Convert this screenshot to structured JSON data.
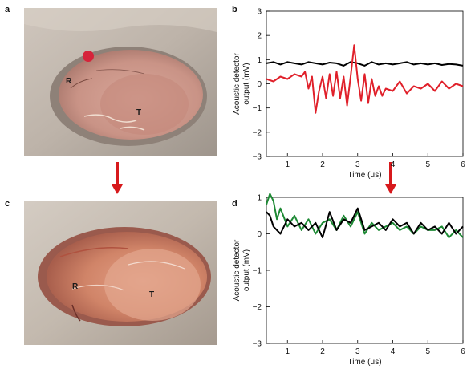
{
  "panels": {
    "a": {
      "letter": "a",
      "labels": {
        "r": "R",
        "t": "T"
      }
    },
    "b": {
      "letter": "b"
    },
    "c": {
      "letter": "c",
      "labels": {
        "r": "R",
        "t": "T"
      }
    },
    "d": {
      "letter": "d"
    }
  },
  "colors": {
    "arrow": "#d7191c",
    "trace_black": "#000000",
    "trace_red": "#e0202a",
    "trace_green": "#1e8a35"
  },
  "chart_data": [
    {
      "panel": "b",
      "type": "line",
      "xlabel": "Time (μs)",
      "ylabel": "Acoustic detector output (mV)",
      "ylabel_lines": [
        "Acoustic detector",
        "output (mV)"
      ],
      "xlim": [
        0.4,
        6
      ],
      "ylim": [
        -3,
        3
      ],
      "xticks": [
        1,
        2,
        3,
        4,
        5,
        6
      ],
      "yticks": [
        -3,
        -2,
        -1,
        0,
        1,
        2,
        3
      ],
      "series": [
        {
          "color": "#000000",
          "x": [
            0.4,
            0.6,
            0.8,
            1.0,
            1.2,
            1.4,
            1.6,
            1.8,
            2.0,
            2.2,
            2.4,
            2.6,
            2.8,
            3.0,
            3.2,
            3.4,
            3.6,
            3.8,
            4.0,
            4.2,
            4.4,
            4.6,
            4.8,
            5.0,
            5.2,
            5.4,
            5.6,
            5.8,
            6.0
          ],
          "y": [
            0.85,
            0.9,
            0.8,
            0.9,
            0.85,
            0.8,
            0.9,
            0.85,
            0.8,
            0.88,
            0.85,
            0.75,
            0.9,
            0.85,
            0.75,
            0.9,
            0.8,
            0.85,
            0.8,
            0.85,
            0.9,
            0.8,
            0.85,
            0.8,
            0.85,
            0.78,
            0.82,
            0.8,
            0.75
          ]
        },
        {
          "color": "#e0202a",
          "x": [
            0.4,
            0.6,
            0.8,
            1.0,
            1.2,
            1.4,
            1.5,
            1.6,
            1.7,
            1.8,
            1.9,
            2.0,
            2.1,
            2.2,
            2.3,
            2.4,
            2.5,
            2.6,
            2.7,
            2.8,
            2.9,
            3.0,
            3.1,
            3.2,
            3.3,
            3.4,
            3.5,
            3.6,
            3.7,
            3.8,
            4.0,
            4.2,
            4.4,
            4.6,
            4.8,
            5.0,
            5.2,
            5.4,
            5.6,
            5.8,
            6.0
          ],
          "y": [
            0.2,
            0.1,
            0.3,
            0.2,
            0.4,
            0.3,
            0.5,
            -0.2,
            0.3,
            -1.2,
            -0.3,
            0.3,
            -0.6,
            0.4,
            -0.5,
            0.5,
            -0.6,
            0.3,
            -0.9,
            0.3,
            1.6,
            0.2,
            -0.7,
            0.4,
            -0.8,
            0.2,
            -0.5,
            -0.1,
            -0.5,
            -0.2,
            -0.3,
            0.1,
            -0.4,
            -0.1,
            -0.2,
            0.0,
            -0.3,
            0.1,
            -0.2,
            0.0,
            -0.1
          ]
        }
      ]
    },
    {
      "panel": "d",
      "type": "line",
      "xlabel": "Time (μs)",
      "ylabel": "Acoustic detector output (mV)",
      "ylabel_lines": [
        "Acoustic detector",
        "output (mV)"
      ],
      "xlim": [
        0.4,
        6
      ],
      "ylim": [
        -3,
        1
      ],
      "xticks": [
        1,
        2,
        3,
        4,
        5,
        6
      ],
      "yticks": [
        -3,
        -2,
        -1,
        0,
        1
      ],
      "series": [
        {
          "color": "#1e8a35",
          "x": [
            0.4,
            0.5,
            0.6,
            0.7,
            0.8,
            1.0,
            1.2,
            1.4,
            1.6,
            1.8,
            2.0,
            2.2,
            2.4,
            2.6,
            2.8,
            3.0,
            3.2,
            3.4,
            3.6,
            3.8,
            4.0,
            4.2,
            4.4,
            4.6,
            4.8,
            5.0,
            5.2,
            5.4,
            5.6,
            5.8,
            6.0
          ],
          "y": [
            0.8,
            1.1,
            0.9,
            0.4,
            0.7,
            0.2,
            0.5,
            0.1,
            0.4,
            0.0,
            0.3,
            0.4,
            0.1,
            0.5,
            0.2,
            0.6,
            0.0,
            0.3,
            0.1,
            0.2,
            0.3,
            0.1,
            0.2,
            0.0,
            0.2,
            0.1,
            0.1,
            0.2,
            -0.1,
            0.1,
            -0.1
          ]
        },
        {
          "color": "#000000",
          "x": [
            0.4,
            0.5,
            0.6,
            0.8,
            1.0,
            1.2,
            1.4,
            1.6,
            1.8,
            2.0,
            2.2,
            2.4,
            2.6,
            2.8,
            3.0,
            3.2,
            3.4,
            3.6,
            3.8,
            4.0,
            4.2,
            4.4,
            4.6,
            4.8,
            5.0,
            5.2,
            5.4,
            5.6,
            5.8,
            6.0
          ],
          "y": [
            0.6,
            0.5,
            0.2,
            0.0,
            0.4,
            0.2,
            0.3,
            0.1,
            0.3,
            -0.1,
            0.6,
            0.1,
            0.4,
            0.3,
            0.7,
            0.1,
            0.2,
            0.3,
            0.1,
            0.4,
            0.2,
            0.3,
            0.0,
            0.3,
            0.1,
            0.2,
            0.0,
            0.3,
            0.0,
            0.2
          ]
        }
      ]
    }
  ]
}
